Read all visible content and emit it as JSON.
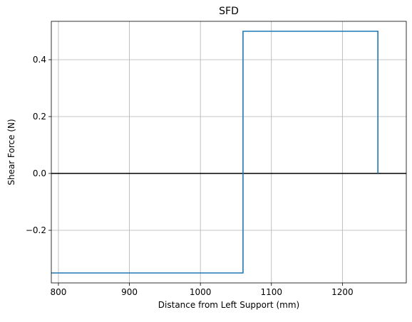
{
  "chart_data": {
    "type": "line",
    "title": "SFD",
    "xlabel": "Distance from Left Support (mm)",
    "ylabel": "Shear Force (N)",
    "xlim": [
      790,
      1290
    ],
    "ylim": [
      -0.385,
      0.535
    ],
    "xticks": [
      800,
      900,
      1000,
      1100,
      1200
    ],
    "xtick_labels": [
      "800",
      "900",
      "1000",
      "1100",
      "1200"
    ],
    "yticks": [
      -0.2,
      0.0,
      0.2,
      0.4
    ],
    "ytick_labels": [
      "−0.2",
      "0.0",
      "0.2",
      "0.4"
    ],
    "grid": true,
    "series": [
      {
        "color": "#1f77b4",
        "x": [
          790,
          1060,
          1060,
          1250,
          1250
        ],
        "y": [
          -0.35,
          -0.35,
          0.5,
          0.5,
          0.0
        ]
      }
    ],
    "reference_line": {
      "y": 0.0,
      "color": "#000000"
    }
  }
}
